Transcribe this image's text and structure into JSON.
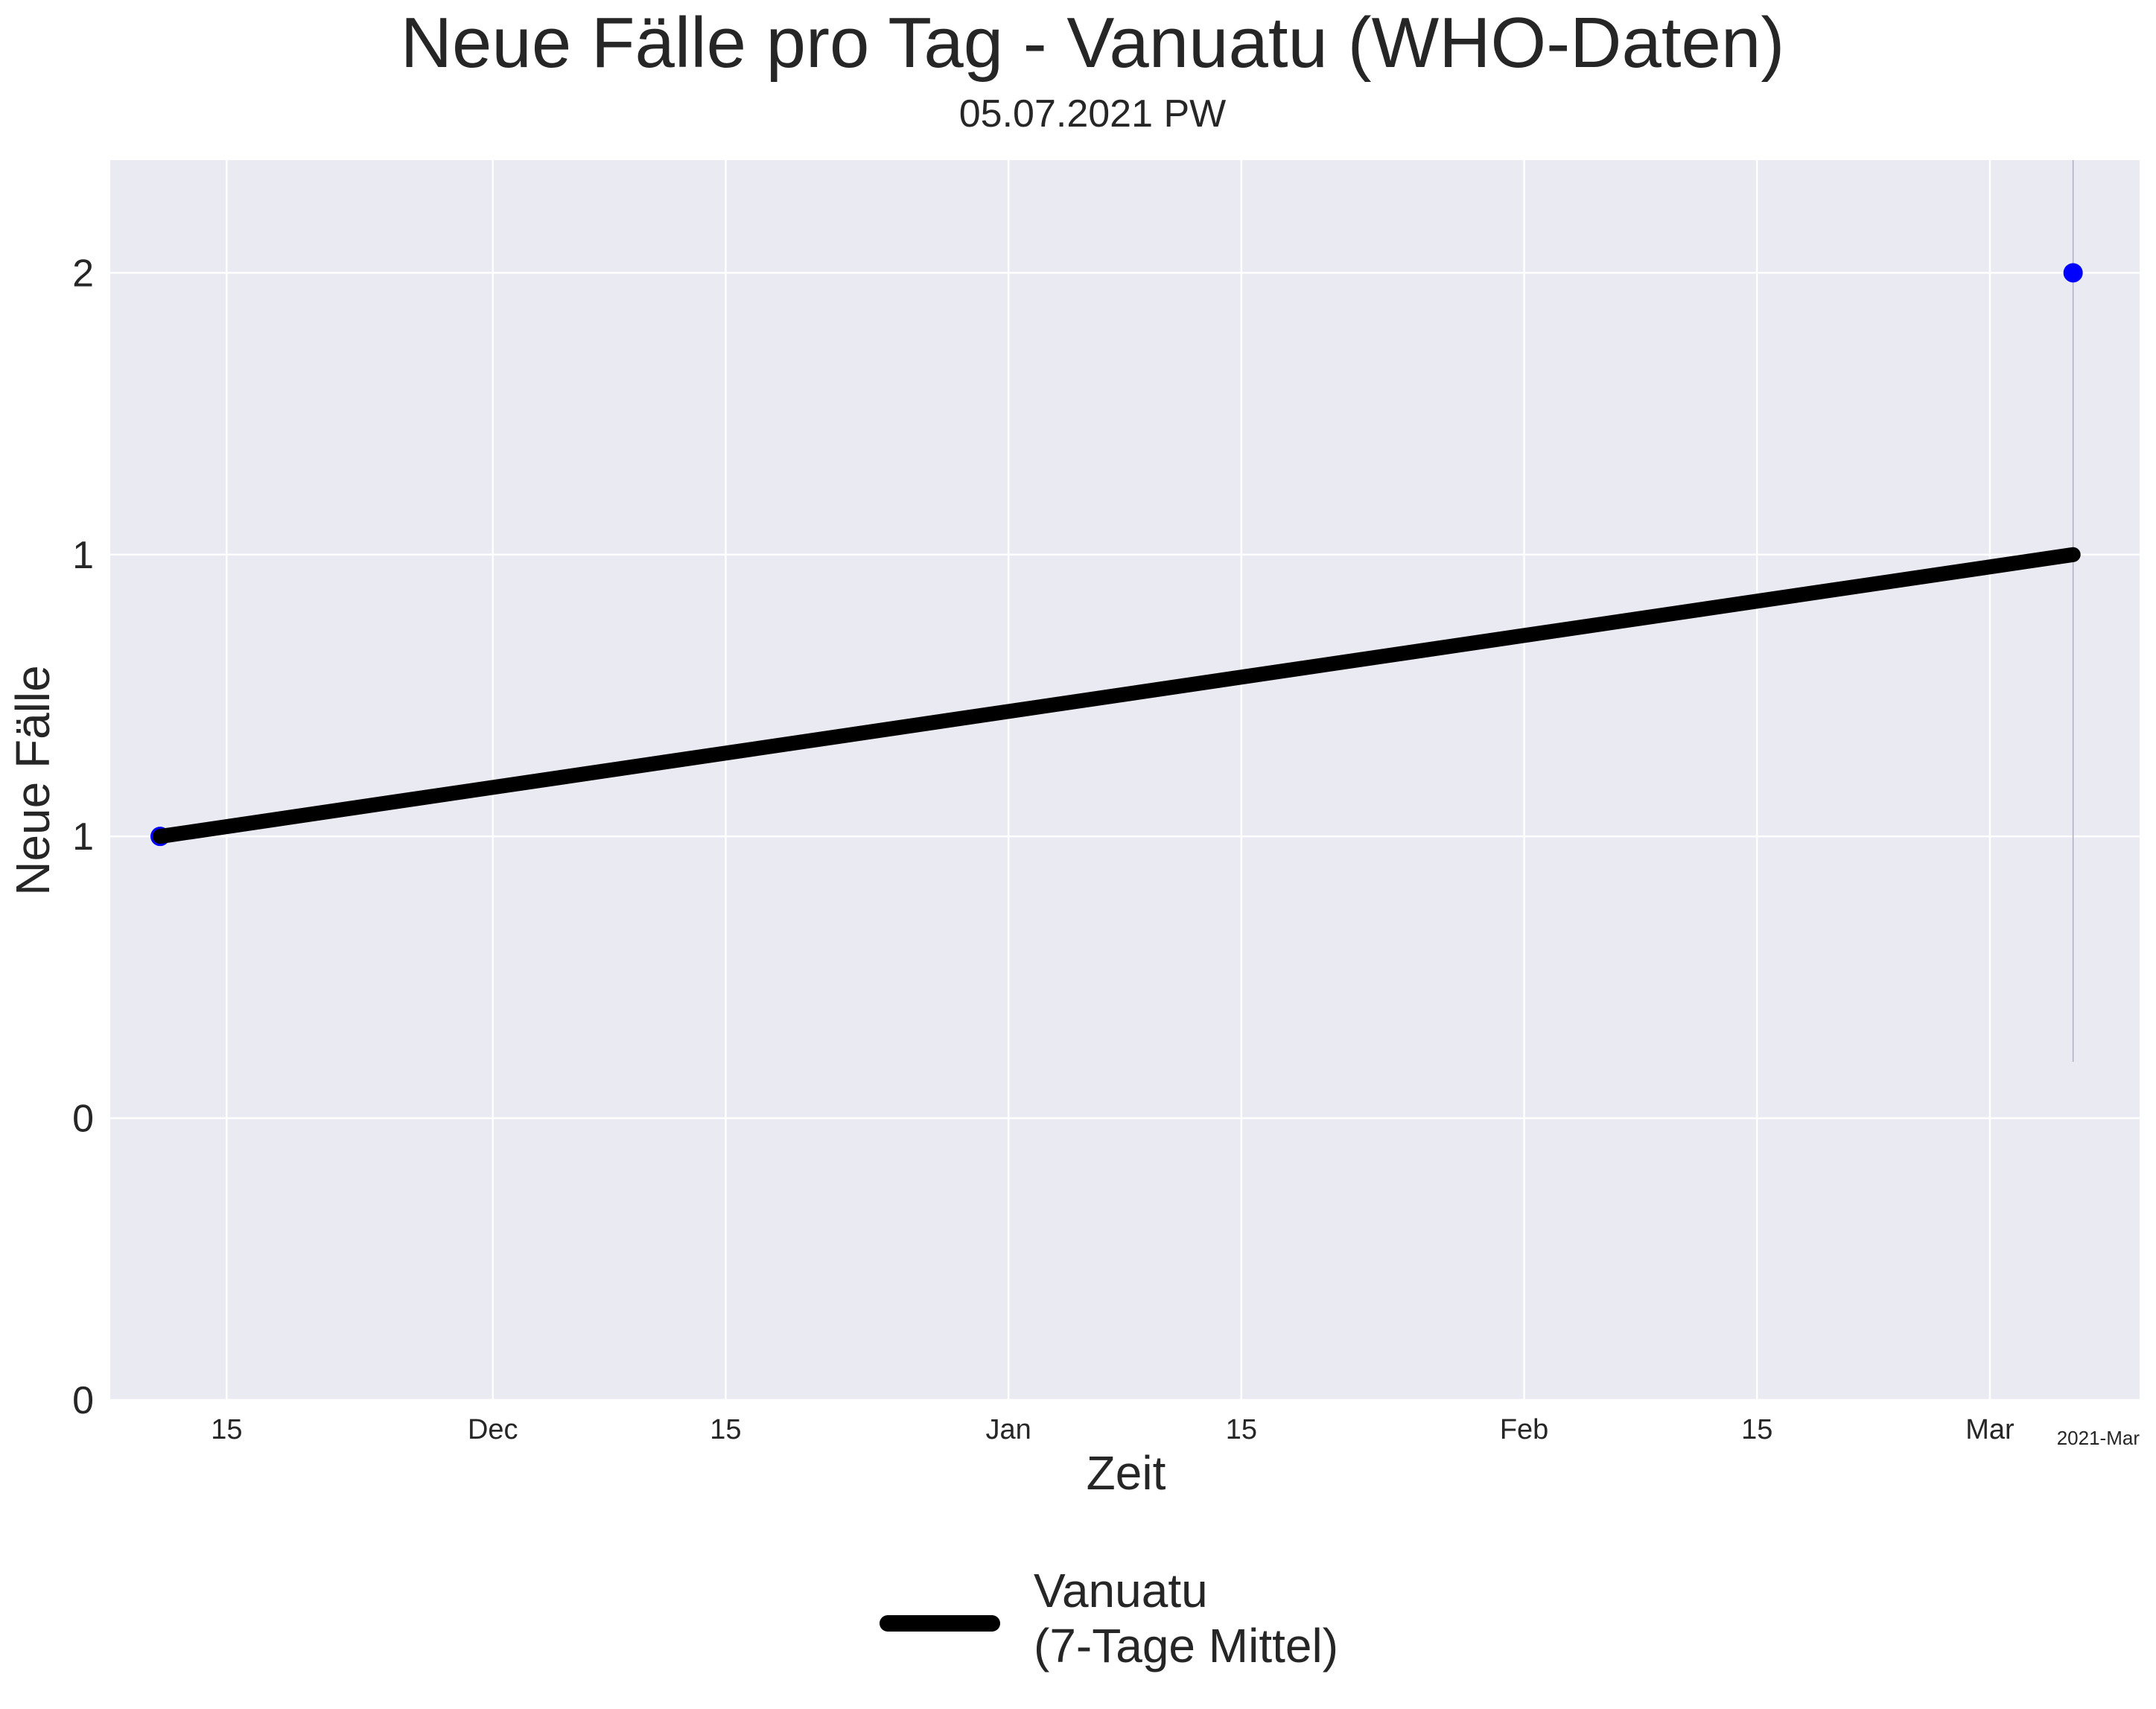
{
  "chart_data": {
    "type": "line",
    "title": "Neue Fälle pro Tag - Vanuatu (WHO-Daten)",
    "subtitle": "05.07.2021 PW",
    "xlabel": "Zeit",
    "ylabel": "Neue Fälle",
    "x_offset_label": "2021-Mar",
    "x_range": [
      "2020-11-08",
      "2021-03-10"
    ],
    "ylim": [
      0.0,
      2.2
    ],
    "y_ticks": [
      {
        "value": 0.0,
        "label": "0"
      },
      {
        "value": 0.5,
        "label": "0"
      },
      {
        "value": 1.0,
        "label": "1"
      },
      {
        "value": 1.5,
        "label": "1"
      },
      {
        "value": 2.0,
        "label": "2"
      }
    ],
    "x_ticks": [
      {
        "date": "2020-11-15",
        "label": "15"
      },
      {
        "date": "2020-12-01",
        "label": "Dec"
      },
      {
        "date": "2020-12-15",
        "label": "15"
      },
      {
        "date": "2021-01-01",
        "label": "Jan"
      },
      {
        "date": "2021-01-15",
        "label": "15"
      },
      {
        "date": "2021-02-01",
        "label": "Feb"
      },
      {
        "date": "2021-02-15",
        "label": "15"
      },
      {
        "date": "2021-03-01",
        "label": "Mar"
      }
    ],
    "grid": true,
    "legend_position": "bottom-center",
    "series": [
      {
        "name": "Vanuatu\n(7-Tage Mittel)",
        "kind": "line",
        "color": "#000000",
        "points": [
          {
            "x": "2020-11-11",
            "y": 1.0
          },
          {
            "x": "2021-03-06",
            "y": 1.5
          }
        ]
      },
      {
        "kind": "scatter",
        "color": "#0000ff",
        "points": [
          {
            "x": "2020-11-11",
            "y": 1.0
          },
          {
            "x": "2021-03-06",
            "y": 2.0
          }
        ]
      }
    ],
    "vertical_marker": {
      "x": "2021-03-06",
      "y_range": [
        0.6,
        2.2
      ],
      "color": "#aab0c8"
    }
  },
  "colors": {
    "plot_background": "#eaeaf2",
    "grid": "#ffffff",
    "page_background": "#ffffff"
  }
}
